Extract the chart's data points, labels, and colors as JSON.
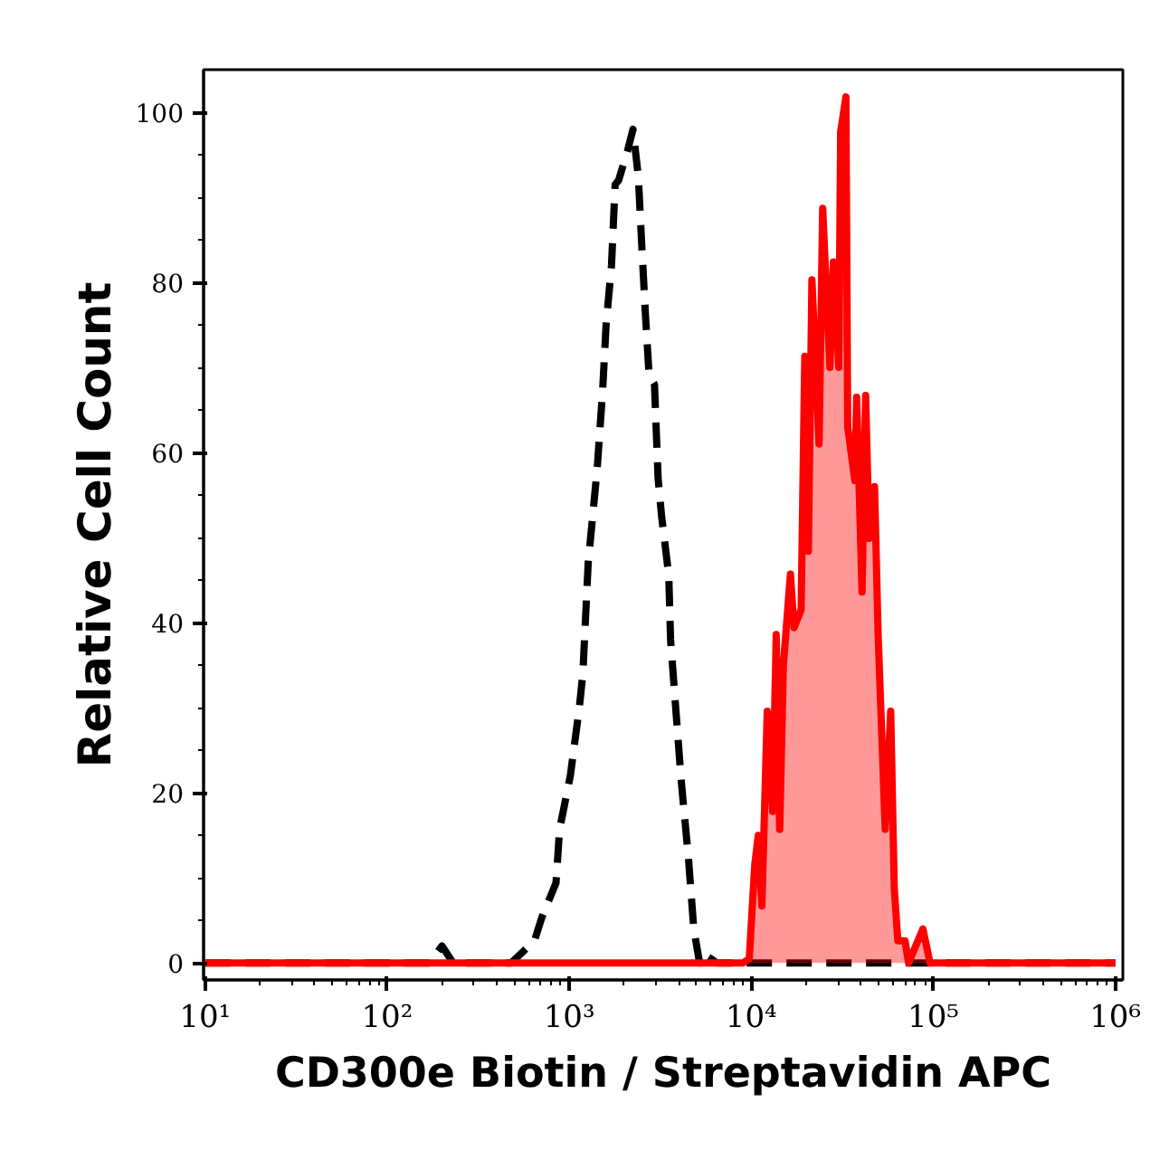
{
  "chart_data": {
    "type": "area",
    "xlabel": "CD300e Biotin / Streptavidin APC",
    "ylabel": "Relative Cell Count",
    "log": "x",
    "grid": false,
    "xlim": [
      9.8,
      1100000
    ],
    "ylim": [
      -2,
      105
    ],
    "xticks": [
      {
        "value": 10,
        "label": "10¹"
      },
      {
        "value": 100,
        "label": "10²"
      },
      {
        "value": 1000,
        "label": "10³"
      },
      {
        "value": 10000,
        "label": "10⁴"
      },
      {
        "value": 100000,
        "label": "10⁵"
      },
      {
        "value": 1000000,
        "label": "10⁶"
      }
    ],
    "yticks": [
      0,
      20,
      40,
      60,
      80,
      100
    ],
    "series": [
      {
        "type": "line",
        "line_style": "dashed",
        "color": "#000000",
        "x": [
          10,
          170,
          200,
          230,
          260,
          480,
          644,
          706,
          846,
          885,
          1014,
          1136,
          1188,
          1271,
          1423,
          1523,
          1594,
          1707,
          1787,
          1868,
          2093,
          2241,
          2397,
          2508,
          2625,
          2748,
          2940,
          3077,
          3217,
          3521,
          3604,
          3857,
          4128,
          4519,
          4833,
          5200,
          5534,
          6486,
          1000000
        ],
        "values": [
          0,
          0,
          2,
          0,
          0,
          0,
          2.6,
          5.3,
          9.4,
          15.7,
          22,
          30,
          34,
          47,
          58,
          67,
          75,
          82,
          91.5,
          92,
          95.5,
          98,
          92.4,
          84,
          76,
          69,
          68,
          57,
          52.5,
          45.6,
          38,
          29.6,
          21.3,
          12.3,
          4,
          0,
          1,
          0,
          0
        ]
      },
      {
        "color": "#ff0000",
        "x": [
          10,
          9000,
          9750,
          10450,
          10920,
          11440,
          12240,
          13100,
          13710,
          14330,
          15010,
          16410,
          17180,
          18790,
          19680,
          20590,
          21540,
          23580,
          24680,
          27040,
          28260,
          30270,
          30970,
          33110,
          33880,
          37070,
          37930,
          40600,
          42490,
          44460,
          47560,
          49770,
          54430,
          58340,
          61050,
          63880,
          69940,
          73140,
          87700,
          95960,
          1000000
        ],
        "values": [
          0,
          0,
          0.5,
          11.5,
          15,
          6.7,
          29.6,
          17.8,
          38.6,
          15.7,
          35,
          45.7,
          39.4,
          41.5,
          71.3,
          48.4,
          80.3,
          61,
          88.7,
          70,
          82.4,
          70,
          97.7,
          101.8,
          63,
          56.7,
          66.5,
          43.6,
          66.7,
          49.9,
          56,
          38.6,
          15.7,
          29.6,
          8.8,
          2.6,
          2.6,
          0,
          4,
          0,
          0
        ]
      }
    ]
  }
}
